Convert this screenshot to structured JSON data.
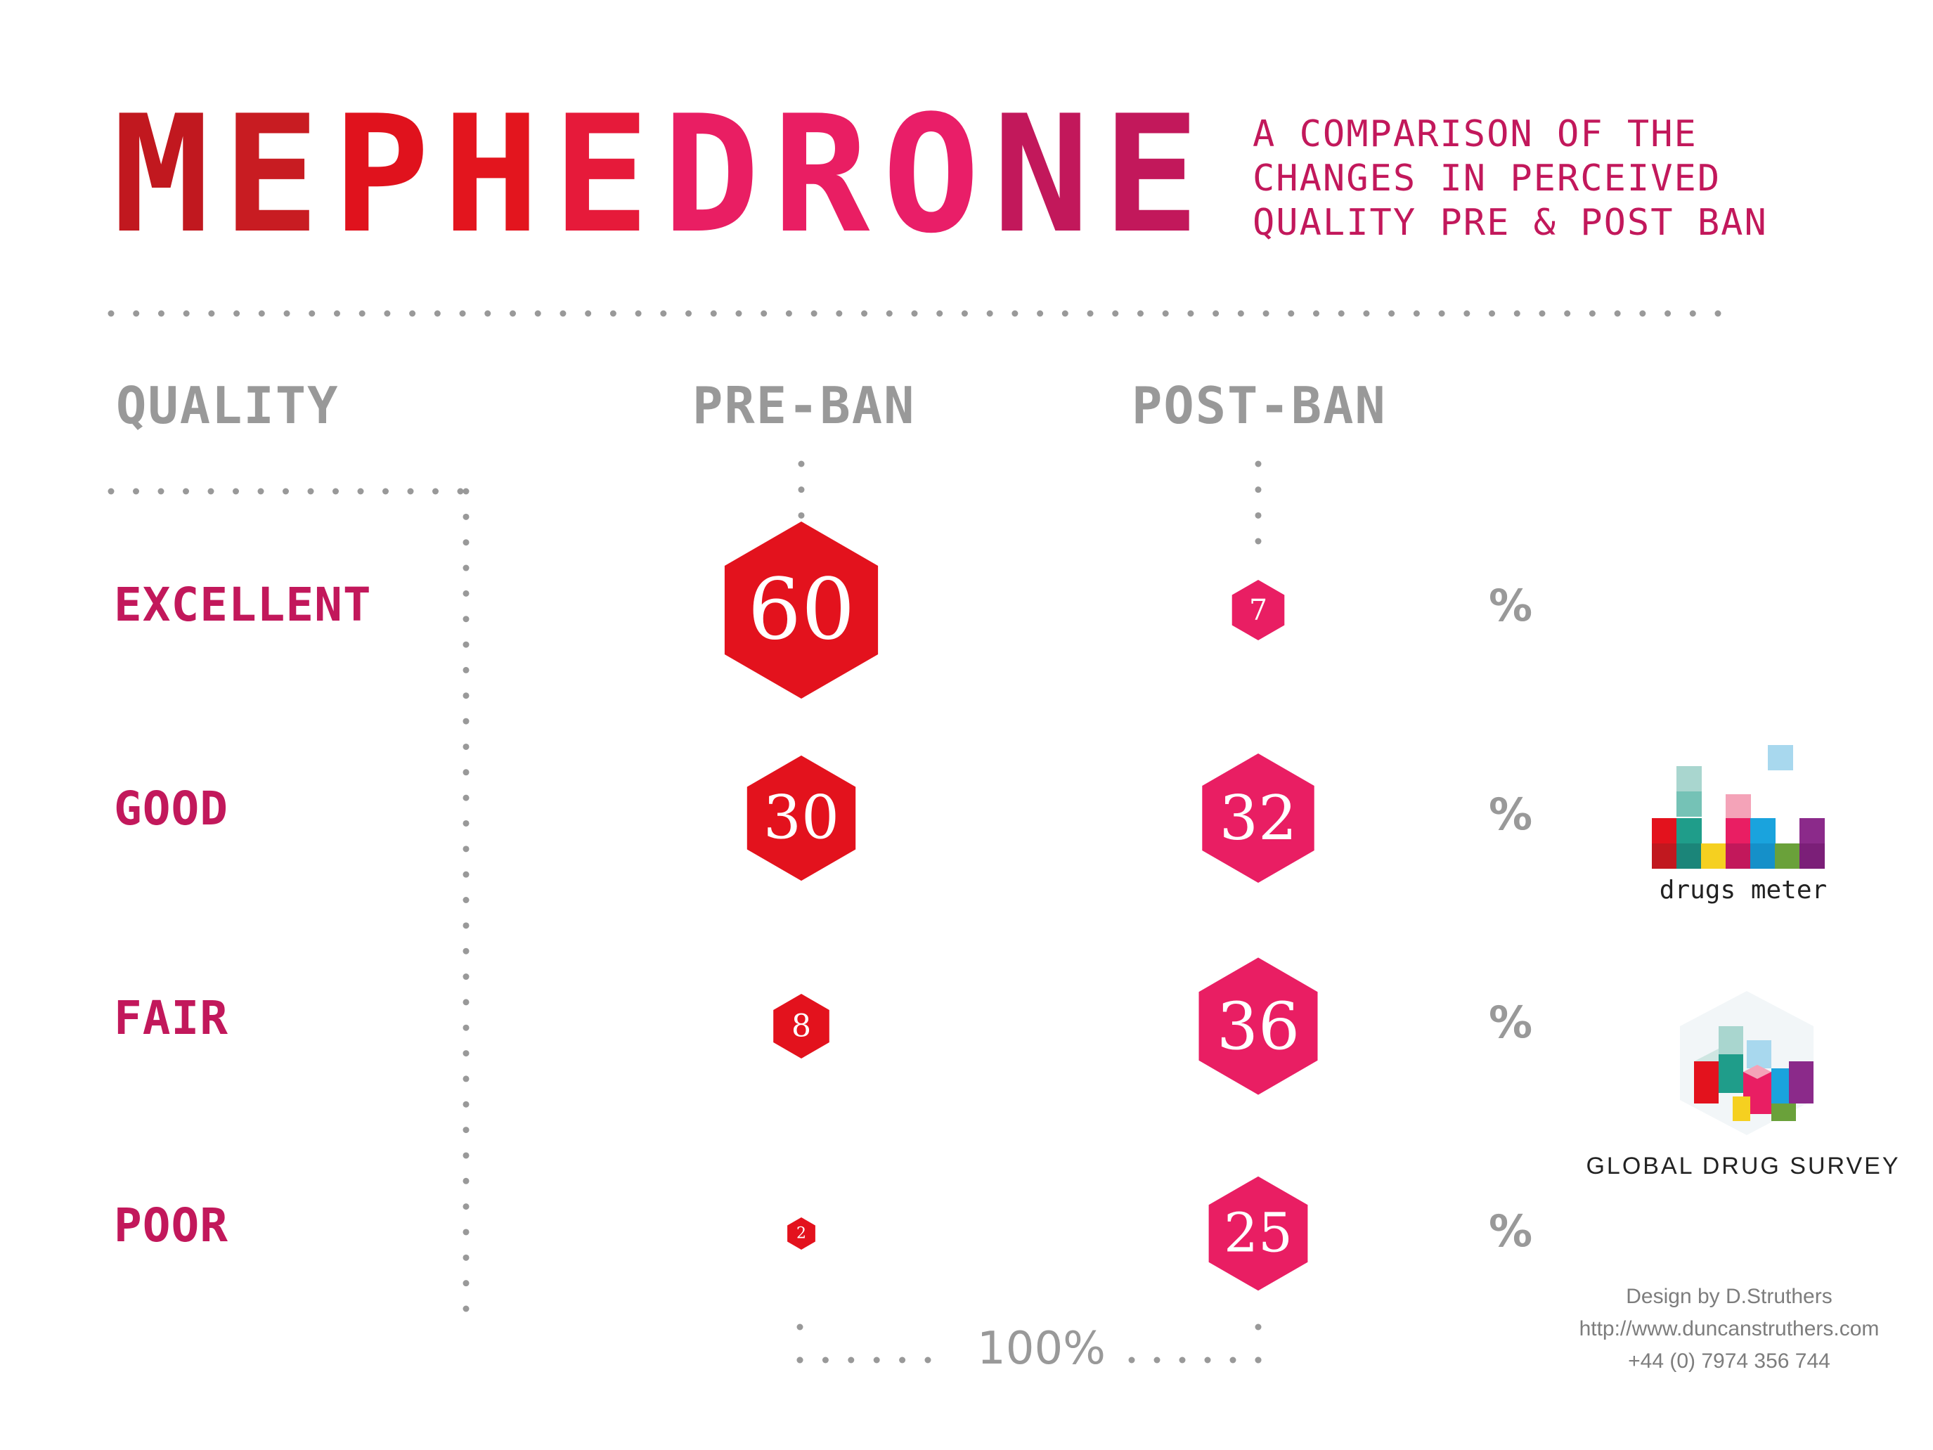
{
  "header": {
    "title_letters": [
      {
        "char": "M",
        "color": "#c1181f"
      },
      {
        "char": "E",
        "color": "#c81c22"
      },
      {
        "char": "P",
        "color": "#e0121d"
      },
      {
        "char": "H",
        "color": "#e3151e"
      },
      {
        "char": "E",
        "color": "#e61a3a"
      },
      {
        "char": "D",
        "color": "#e91e63"
      },
      {
        "char": "R",
        "color": "#e91e63"
      },
      {
        "char": "O",
        "color": "#e91e68"
      },
      {
        "char": "N",
        "color": "#c2185b"
      },
      {
        "char": "E",
        "color": "#c2185b"
      }
    ],
    "subtitle_lines": [
      "A COMPARISON OF THE",
      "CHANGES IN PERCEIVED",
      "QUALITY PRE & POST BAN"
    ]
  },
  "columns": {
    "quality": "QUALITY",
    "pre_ban": "PRE-BAN",
    "post_ban": "POST-BAN"
  },
  "pct_symbol": "%",
  "total_label": "100%",
  "colors": {
    "pre_ban": "#e3121d",
    "post_ban": "#e91e63",
    "label": "#c2185b",
    "grey": "#999999",
    "dots": "#999999"
  },
  "chart_data": {
    "type": "bubble-table",
    "categories": [
      "EXCELLENT",
      "GOOD",
      "FAIR",
      "POOR"
    ],
    "series": [
      {
        "name": "PRE-BAN",
        "values": [
          60,
          30,
          8,
          2
        ],
        "value_labels": [
          "60",
          "30",
          "8",
          "2"
        ]
      },
      {
        "name": "POST-BAN",
        "values": [
          7,
          32,
          36,
          25
        ],
        "value_labels": [
          "7",
          "32",
          "36",
          "25"
        ]
      }
    ],
    "unit": "%"
  },
  "logos": {
    "drugs_meter": "drugs meter",
    "global_drug_survey": "GLOBAL DRUG SURVEY"
  },
  "credits": {
    "line1": "Design by D.Struthers",
    "line2": "http://www.duncanstruthers.com",
    "line3": "+44 (0) 7974 356 744"
  }
}
